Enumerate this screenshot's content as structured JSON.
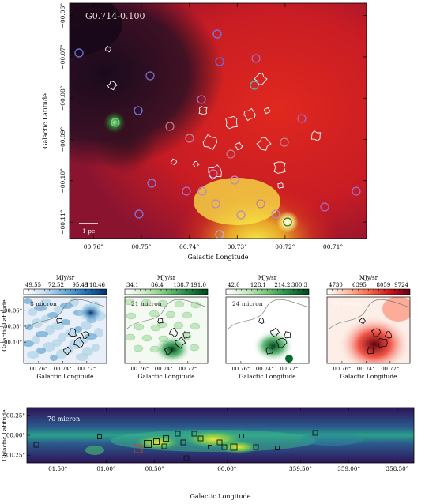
{
  "main": {
    "title": "G0.714-0.100",
    "scalebar_label": "1 pc",
    "xlabel": "Galactic Longitude",
    "ylabel": "Galactic Latitude",
    "x_ticks": [
      "00.76°",
      "00.75°",
      "00.74°",
      "00.73°",
      "00.72°",
      "00.71°"
    ],
    "y_ticks": [
      "−00.06°",
      "−00.07°",
      "−00.08°",
      "−00.09°",
      "−00.10°",
      "−00.11°"
    ],
    "colors": {
      "bg_dark": "#2a0f24",
      "red": "#d42020",
      "yellow": "#f2e23a",
      "contour": "#ffffff"
    }
  },
  "panels": [
    {
      "label": "8 micron",
      "unit": "MJy/sr",
      "ticks": [
        "49.55",
        "72.52",
        "95.49",
        "118.46"
      ],
      "cmap": [
        "#ffffff",
        "#c6dbef",
        "#6baed6",
        "#2171b5",
        "#08306b"
      ]
    },
    {
      "label": "21 micron",
      "unit": "MJy/sr",
      "ticks": [
        "34.1",
        "86.4",
        "138.7",
        "191.0"
      ],
      "cmap": [
        "#ffffff",
        "#c7e9c0",
        "#74c476",
        "#238b45",
        "#00441b"
      ]
    },
    {
      "label": "24 micron",
      "unit": "MJy/sr",
      "ticks": [
        "42.0",
        "128.1",
        "214.2",
        "300.3"
      ],
      "cmap": [
        "#ffffff",
        "#c7e9c0",
        "#74c476",
        "#238b45",
        "#00441b"
      ]
    },
    {
      "label": "70 micron",
      "unit": "MJy/sr",
      "ticks": [
        "4730",
        "6395",
        "8059",
        "9724"
      ],
      "cmap": [
        "#ffffff",
        "#fcbba1",
        "#fb6a4a",
        "#cb181d",
        "#67000d"
      ]
    }
  ],
  "panel_axes": {
    "xlabel": "Galactic Longitude",
    "ylabel": "Galactic Latitude",
    "x_ticks": [
      "00.76°",
      "00.74°",
      "00.72°"
    ],
    "y_ticks": [
      "−00.06°",
      "−00.08°",
      "−00.10°"
    ]
  },
  "strip": {
    "label": "70 micron",
    "xlabel": "Galactic Longitude",
    "ylabel": "Galactic Latitude",
    "x_ticks": [
      "01.50°",
      "01.00°",
      "00.50°",
      "00.00°",
      "359.50°",
      "359.00°",
      "358.50°"
    ],
    "y_ticks": [
      "00.25°",
      "00.00°",
      "−00.25°"
    ]
  },
  "chart_data": [
    {
      "type": "heatmap",
      "panel": "main",
      "x_axis": {
        "label": "Galactic Longitude",
        "range": [
          0.765,
          0.703
        ],
        "ticks": [
          0.76,
          0.75,
          0.74,
          0.73,
          0.72,
          0.71
        ]
      },
      "y_axis": {
        "label": "Galactic Latitude",
        "range": [
          -0.114,
          -0.057
        ],
        "ticks": [
          -0.06,
          -0.07,
          -0.08,
          -0.09,
          -0.1,
          -0.11
        ]
      }
    },
    {
      "type": "heatmap",
      "panel": "8 micron",
      "colorbar": [
        49.55,
        72.52,
        95.49,
        118.46
      ]
    },
    {
      "type": "heatmap",
      "panel": "21 micron",
      "colorbar": [
        34.1,
        86.4,
        138.7,
        191.0
      ]
    },
    {
      "type": "heatmap",
      "panel": "24 micron",
      "colorbar": [
        42.0,
        128.1,
        214.2,
        300.3
      ]
    },
    {
      "type": "heatmap",
      "panel": "70 micron",
      "colorbar": [
        4730,
        6395,
        8059,
        9724
      ]
    },
    {
      "type": "heatmap",
      "panel": "strip 70 micron",
      "x_axis": {
        "label": "Galactic Longitude",
        "ticks": [
          1.5,
          1.0,
          0.5,
          0.0,
          359.5,
          359.0,
          358.5
        ]
      },
      "y_axis": {
        "label": "Galactic Latitude",
        "ticks": [
          0.25,
          0.0,
          -0.25
        ]
      }
    }
  ]
}
